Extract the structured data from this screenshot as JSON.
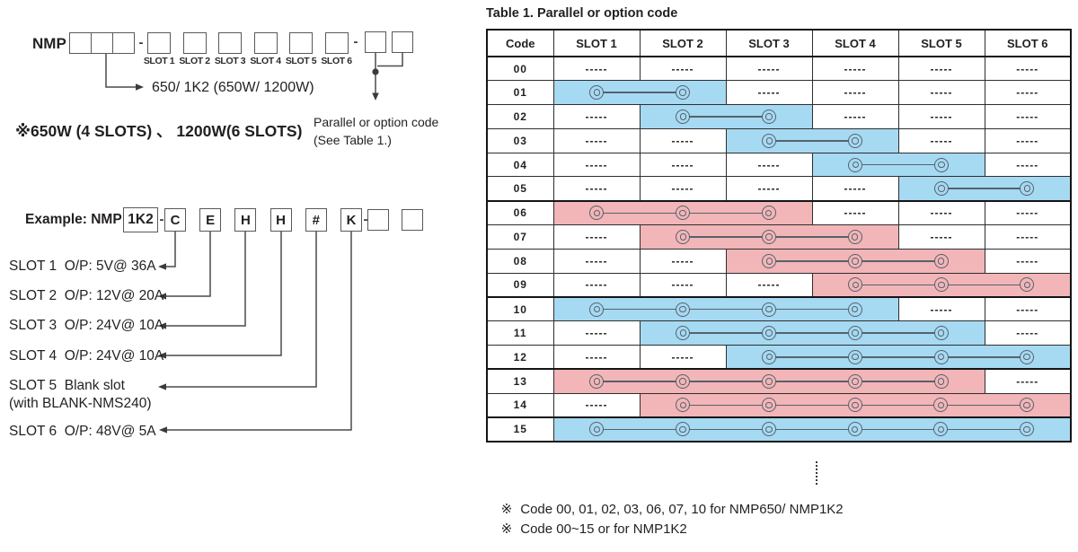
{
  "model_diagram": {
    "prefix": "NMP",
    "separator": "-",
    "slot_labels": [
      "SLOT 1",
      "SLOT 2",
      "SLOT 3",
      "SLOT 4",
      "SLOT 5",
      "SLOT 6"
    ],
    "power_note": "650/ 1K2 (650W/ 1200W)",
    "slots_note": "※650W (4 SLOTS) 、 1200W(6 SLOTS)",
    "option_note_line1": "Parallel or option code",
    "option_note_line2": "(See Table 1.)"
  },
  "example": {
    "label": "Example: NMP",
    "power_code": "1K2",
    "separator": "-",
    "slot_codes": [
      "C",
      "E",
      "H",
      "H",
      "#",
      "K"
    ],
    "slot_descriptions": [
      "SLOT 1  O/P: 5V@ 36A",
      "SLOT 2  O/P: 12V@ 20A",
      "SLOT 3  O/P: 24V@ 10A",
      "SLOT 4  O/P: 24V@ 10A",
      "SLOT 5  Blank slot",
      "SLOT 6  O/P: 48V@ 5A"
    ],
    "slot5_note": "(with BLANK-NMS240)"
  },
  "table": {
    "title": "Table 1. Parallel or option code",
    "columns": [
      "Code",
      "SLOT 1",
      "SLOT 2",
      "SLOT 3",
      "SLOT 4",
      "SLOT 5",
      "SLOT 6"
    ],
    "empty_cell": "-----",
    "colors": {
      "blue": "#a6d9f2",
      "pink": "#f2b5b8"
    },
    "rows": [
      {
        "code": "00",
        "start": 0,
        "end": 0,
        "color": null
      },
      {
        "code": "01",
        "start": 1,
        "end": 2,
        "color": "blue"
      },
      {
        "code": "02",
        "start": 2,
        "end": 3,
        "color": "blue"
      },
      {
        "code": "03",
        "start": 3,
        "end": 4,
        "color": "blue"
      },
      {
        "code": "04",
        "start": 4,
        "end": 5,
        "color": "blue"
      },
      {
        "code": "05",
        "start": 5,
        "end": 6,
        "color": "blue"
      },
      {
        "code": "06",
        "start": 1,
        "end": 3,
        "color": "pink",
        "group": true
      },
      {
        "code": "07",
        "start": 2,
        "end": 4,
        "color": "pink"
      },
      {
        "code": "08",
        "start": 3,
        "end": 5,
        "color": "pink"
      },
      {
        "code": "09",
        "start": 4,
        "end": 6,
        "color": "pink"
      },
      {
        "code": "10",
        "start": 1,
        "end": 4,
        "color": "blue",
        "group": true
      },
      {
        "code": "11",
        "start": 2,
        "end": 5,
        "color": "blue"
      },
      {
        "code": "12",
        "start": 3,
        "end": 6,
        "color": "blue"
      },
      {
        "code": "13",
        "start": 1,
        "end": 5,
        "color": "pink",
        "group": true
      },
      {
        "code": "14",
        "start": 2,
        "end": 6,
        "color": "pink"
      },
      {
        "code": "15",
        "start": 1,
        "end": 6,
        "color": "blue",
        "group": true
      }
    ],
    "notes": [
      {
        "marker": "※",
        "text": "Code 00, 01, 02, 03, 06, 07, 10 for NMP650/ NMP1K2"
      },
      {
        "marker": "※",
        "text": "Code 00~15 or for NMP1K2"
      }
    ]
  }
}
